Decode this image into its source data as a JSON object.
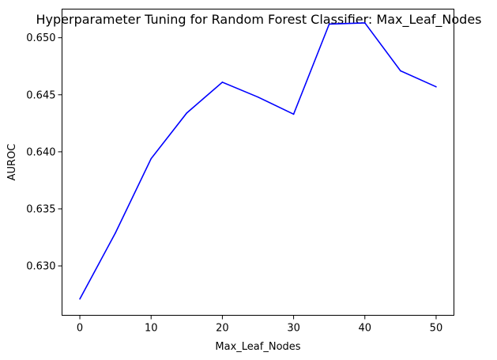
{
  "chart_data": {
    "type": "line",
    "title": "Hyperparameter Tuning for Random Forest Classifier: Max_Leaf_Nodes",
    "xlabel": "Max_Leaf_Nodes",
    "ylabel": "AUROC",
    "x": [
      0,
      5,
      10,
      15,
      20,
      25,
      30,
      35,
      40,
      45,
      50
    ],
    "series": [
      {
        "values": [
          0.6271,
          0.6329,
          0.6394,
          0.6434,
          0.6461,
          0.6448,
          0.6433,
          0.6512,
          0.6513,
          0.6471,
          0.6457
        ],
        "color": "#0000ff"
      }
    ],
    "xlim": [
      -2.5,
      52.5
    ],
    "ylim": [
      0.62567,
      0.65251
    ],
    "xticks": [
      0,
      10,
      20,
      30,
      40,
      50
    ],
    "xtick_labels": [
      "0",
      "10",
      "20",
      "30",
      "40",
      "50"
    ],
    "yticks": [
      0.63,
      0.635,
      0.64,
      0.645,
      0.65
    ],
    "ytick_labels": [
      "0.630",
      "0.635",
      "0.640",
      "0.645",
      "0.650"
    ],
    "grid": false,
    "legend": "none"
  }
}
